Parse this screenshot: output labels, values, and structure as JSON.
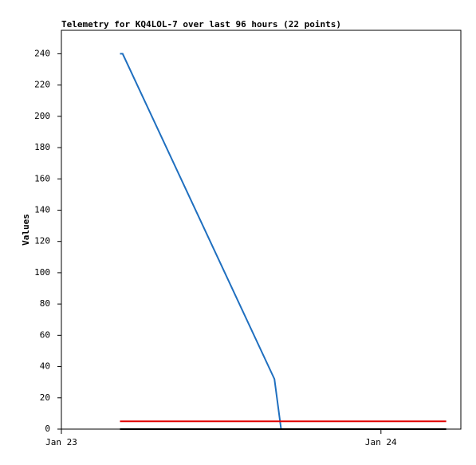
{
  "chart_data": {
    "type": "line",
    "title": "Telemetry for KQ4LOL-7 over last 96 hours (22 points)",
    "y_label": "Values",
    "xlim": [
      0,
      30
    ],
    "xticks": [
      {
        "value": 0,
        "label": "Jan 23"
      },
      {
        "value": 24,
        "label": "Jan 24"
      }
    ],
    "ylim": [
      0,
      255
    ],
    "yticks": [
      0,
      20,
      40,
      60,
      80,
      100,
      120,
      140,
      160,
      180,
      200,
      220,
      240
    ],
    "grid": false,
    "series": [
      {
        "color": "#1f6fbf",
        "x": [
          4.4,
          4.6,
          16,
          16.5
        ],
        "values": [
          240,
          240,
          32,
          0
        ]
      },
      {
        "color": "#e00000",
        "x": [
          4.4,
          28.9
        ],
        "values": [
          5,
          5
        ]
      },
      {
        "color": "#000000",
        "x": [
          4.4,
          28.9
        ],
        "values": [
          0,
          0
        ]
      }
    ]
  }
}
